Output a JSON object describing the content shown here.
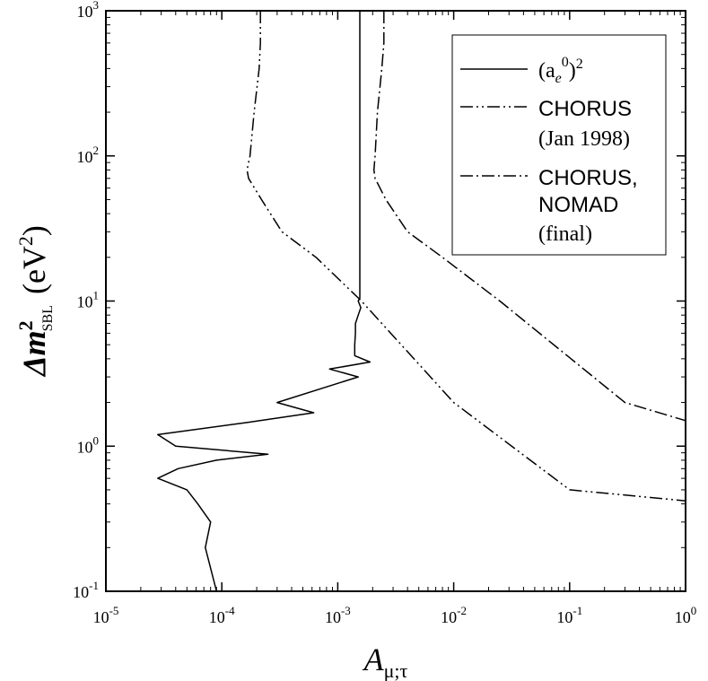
{
  "chart_data": {
    "type": "line",
    "title": "",
    "x_scale": "log",
    "y_scale": "log",
    "xlim": [
      1e-05,
      1
    ],
    "ylim": [
      0.1,
      1000
    ],
    "x_ticks": [
      {
        "value": 1e-05,
        "base": "10",
        "exp": "-5"
      },
      {
        "value": 0.0001,
        "base": "10",
        "exp": "-4"
      },
      {
        "value": 0.001,
        "base": "10",
        "exp": "-3"
      },
      {
        "value": 0.01,
        "base": "10",
        "exp": "-2"
      },
      {
        "value": 0.1,
        "base": "10",
        "exp": "-1"
      },
      {
        "value": 1,
        "base": "10",
        "exp": "0"
      }
    ],
    "y_ticks": [
      {
        "value": 0.1,
        "base": "10",
        "exp": "-1"
      },
      {
        "value": 1,
        "base": "10",
        "exp": "0"
      },
      {
        "value": 10,
        "base": "10",
        "exp": "1"
      },
      {
        "value": 100,
        "base": "10",
        "exp": "2"
      },
      {
        "value": 1000,
        "base": "10",
        "exp": "3"
      }
    ],
    "xlabel": {
      "main": "A",
      "sub": "μ;τ"
    },
    "ylabel": {
      "prefix": "Δm",
      "sup": "2",
      "sub": "SBL",
      "units_open": "(eV",
      "units_sup": "2",
      "units_close": ")"
    },
    "legend": {
      "position": "top-right",
      "entries": [
        {
          "key": "ae0sq",
          "label_a": "(a",
          "label_sub": "e",
          "label_sup": "0",
          "label_close": ")",
          "label_sup2": "2"
        },
        {
          "key": "chorus1998",
          "lines": [
            "CHORUS",
            "(Jan 1998)"
          ]
        },
        {
          "key": "final",
          "lines": [
            "CHORUS,",
            "NOMAD",
            "(final)"
          ]
        }
      ]
    },
    "series": [
      {
        "name": "(a_e^0)^2",
        "key": "ae0sq",
        "style": "solid",
        "points": [
          [
            9e-05,
            0.1
          ],
          [
            7.2e-05,
            0.2
          ],
          [
            8e-05,
            0.3
          ],
          [
            6.2e-05,
            0.4
          ],
          [
            5e-05,
            0.5
          ],
          [
            2.8e-05,
            0.6
          ],
          [
            4.2e-05,
            0.7
          ],
          [
            9e-05,
            0.8
          ],
          [
            0.00025,
            0.88
          ],
          [
            4e-05,
            1.0
          ],
          [
            2.8e-05,
            1.2
          ],
          [
            0.00016,
            1.45
          ],
          [
            0.00062,
            1.7
          ],
          [
            0.0003,
            2.0
          ],
          [
            0.0015,
            3.0
          ],
          [
            0.00085,
            3.4
          ],
          [
            0.0019,
            3.8
          ],
          [
            0.0014,
            4.2
          ],
          [
            0.0014,
            5.0
          ],
          [
            0.00142,
            6.0
          ],
          [
            0.00142,
            7.0
          ],
          [
            0.0015,
            8.0
          ],
          [
            0.00158,
            9.0
          ],
          [
            0.0015,
            10.0
          ],
          [
            0.00155,
            10.5
          ],
          [
            0.00155,
            12.0
          ],
          [
            0.00155,
            1000
          ]
        ]
      },
      {
        "name": "CHORUS (Jan 1998)",
        "key": "chorus1998",
        "style": "dash-dot-dot",
        "points": [
          [
            0.000215,
            1000
          ],
          [
            0.000215,
            600
          ],
          [
            0.00021,
            400
          ],
          [
            0.00019,
            200
          ],
          [
            0.000175,
            100
          ],
          [
            0.000165,
            80
          ],
          [
            0.00017,
            70
          ],
          [
            0.00022,
            50
          ],
          [
            0.00033,
            30
          ],
          [
            0.00065,
            20
          ],
          [
            0.0016,
            10
          ],
          [
            0.01,
            2.0
          ],
          [
            0.1,
            0.5
          ],
          [
            1,
            0.42
          ]
        ]
      },
      {
        "name": "CHORUS, NOMAD (final)",
        "key": "final",
        "style": "dash-dot",
        "points": [
          [
            0.0025,
            1000
          ],
          [
            0.0025,
            600
          ],
          [
            0.0024,
            400
          ],
          [
            0.0022,
            200
          ],
          [
            0.0021,
            100
          ],
          [
            0.00205,
            80
          ],
          [
            0.0021,
            70
          ],
          [
            0.0026,
            50
          ],
          [
            0.004,
            30
          ],
          [
            0.008,
            20
          ],
          [
            0.025,
            10
          ],
          [
            0.3,
            2.0
          ],
          [
            1,
            1.5
          ]
        ]
      }
    ]
  }
}
